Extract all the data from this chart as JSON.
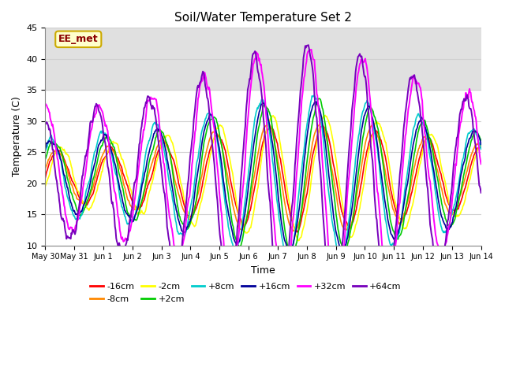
{
  "title": "Soil/Water Temperature Set 2",
  "xlabel": "Time",
  "ylabel": "Temperature (C)",
  "ylim": [
    10,
    45
  ],
  "annotation_text": "EE_met",
  "series": [
    {
      "label": "-16cm",
      "color": "#ff0000"
    },
    {
      "label": "-8cm",
      "color": "#ff8800"
    },
    {
      "label": "-2cm",
      "color": "#ffff00"
    },
    {
      "label": "+2cm",
      "color": "#00cc00"
    },
    {
      "label": "+8cm",
      "color": "#00cccc"
    },
    {
      "label": "+16cm",
      "color": "#000099"
    },
    {
      "label": "+32cm",
      "color": "#ff00ff"
    },
    {
      "label": "+64cm",
      "color": "#7700bb"
    }
  ],
  "tick_labels": [
    "May 30",
    "May 31",
    "Jun 1",
    "Jun 2",
    "Jun 3",
    "Jun 4",
    "Jun 5",
    "Jun 6",
    "Jun 7",
    "Jun 8",
    "Jun 9",
    "Jun 10",
    "Jun 11",
    "Jun 12",
    "Jun 13",
    "Jun 14"
  ],
  "shaded_band": [
    35,
    45
  ],
  "plot_bg": "#ffffff",
  "fig_bg": "#ffffff"
}
